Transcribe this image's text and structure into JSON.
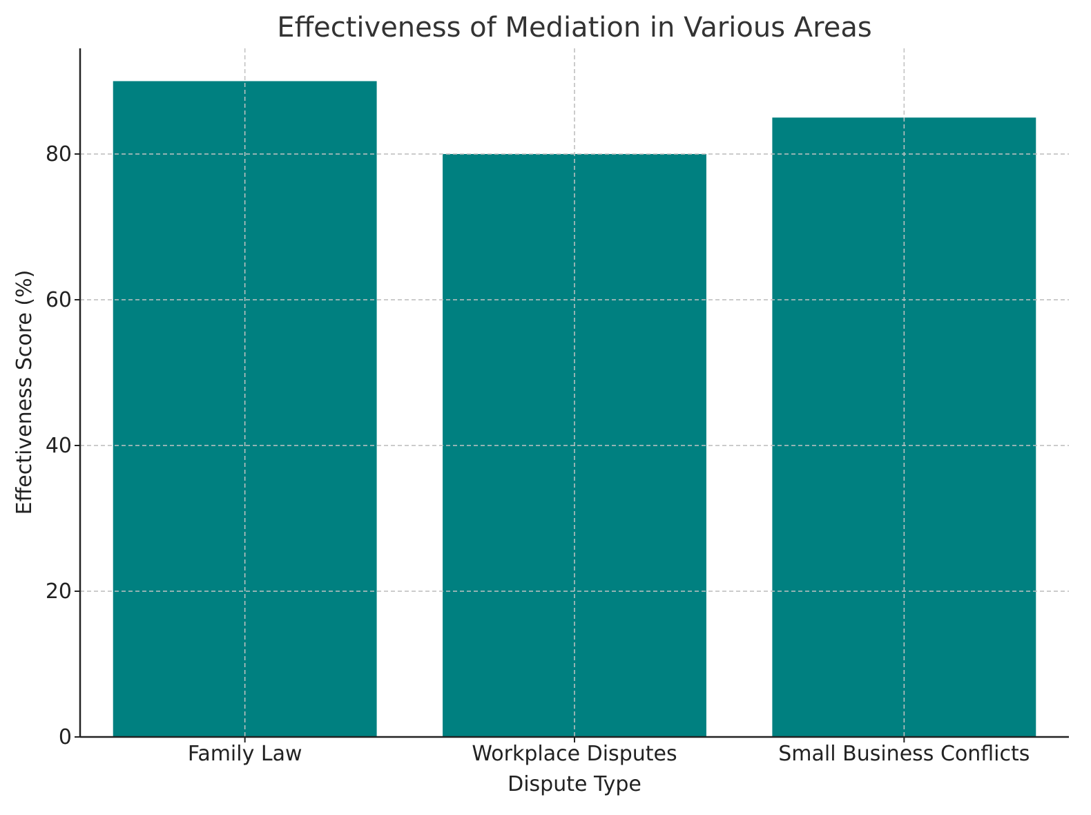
{
  "chart_data": {
    "type": "bar",
    "title": "Effectiveness of Mediation in Various Areas",
    "xlabel": "Dispute Type",
    "ylabel": "Effectiveness Score (%)",
    "categories": [
      "Family Law",
      "Workplace Disputes",
      "Small Business Conflicts"
    ],
    "values": [
      90,
      80,
      85
    ],
    "ylim": [
      0,
      94.5
    ],
    "yticks": [
      0,
      20,
      40,
      60,
      80
    ],
    "bar_color": "#008080",
    "grid": true,
    "legend": "none"
  }
}
